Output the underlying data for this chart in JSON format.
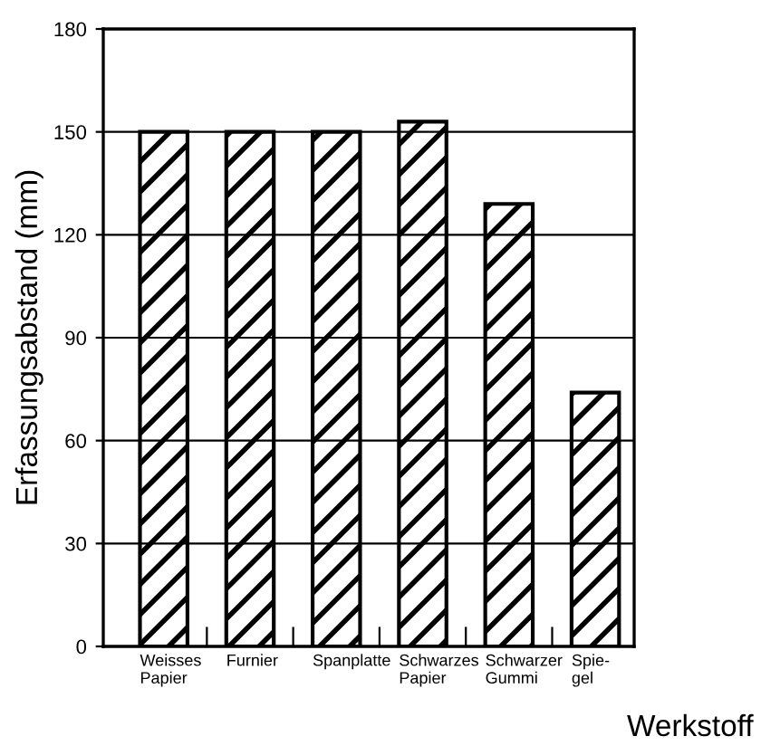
{
  "chart_data": {
    "type": "bar",
    "ylabel": "Erfassungsabstand (mm)",
    "xlabel": "Werkstoff",
    "categories": [
      "Weisses\nPapier",
      "Furnier",
      "Spanplatte",
      "Schwarzes\nPapier",
      "Schwarzer\nGummi",
      "Spie-\ngel"
    ],
    "values": [
      150,
      150,
      150,
      153,
      129,
      74
    ],
    "color": "#000000",
    "ylim": [
      0,
      180
    ],
    "yticks": [
      0,
      30,
      60,
      90,
      120,
      150,
      180
    ],
    "grid": "y"
  }
}
